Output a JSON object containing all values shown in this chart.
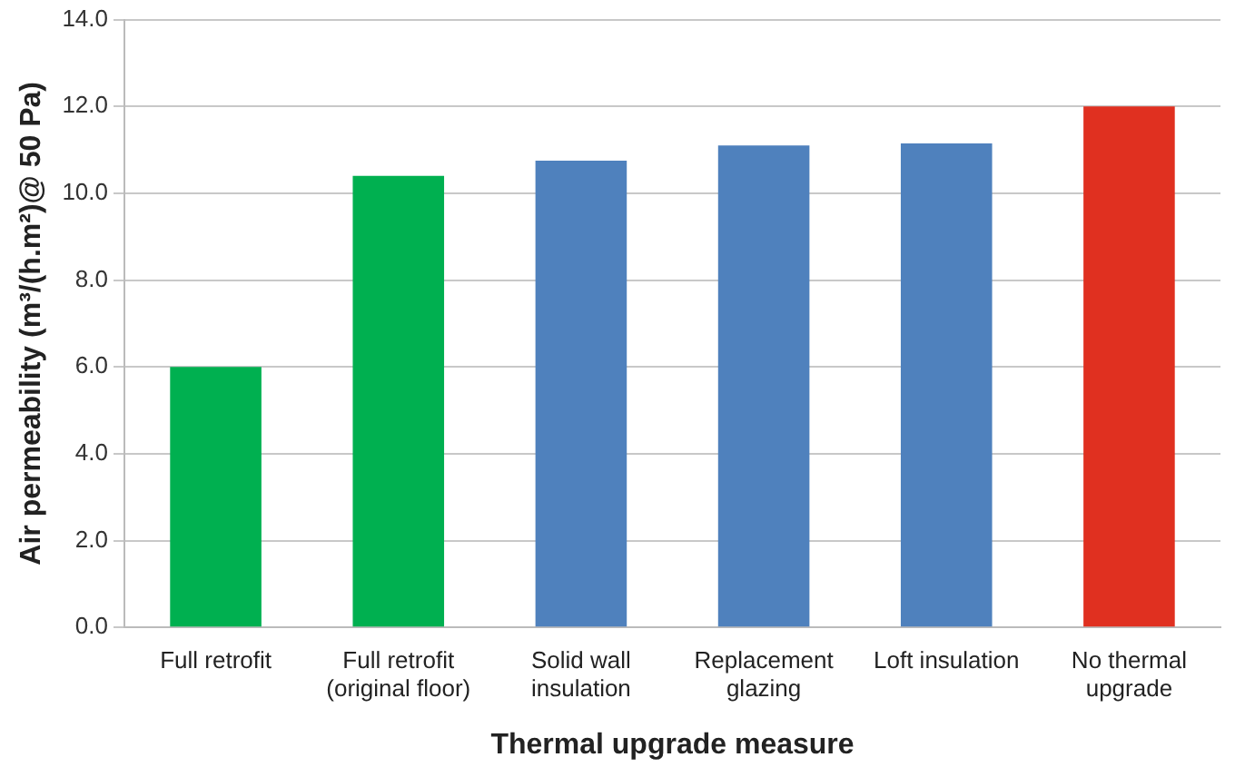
{
  "chart_data": {
    "type": "bar",
    "xlabel": "Thermal upgrade measure",
    "ylabel": "Air permeability (m³/(h.m²)@ 50 Pa)",
    "categories": [
      "Full retrofit",
      "Full retrofit (original floor)",
      "Solid wall insulation",
      "Replacement glazing",
      "Loft insulation",
      "No thermal upgrade"
    ],
    "values": [
      6.0,
      10.4,
      10.75,
      11.1,
      11.15,
      12.0
    ],
    "colors": [
      "#00b050",
      "#00b050",
      "#4f81bd",
      "#4f81bd",
      "#4f81bd",
      "#e03020"
    ],
    "ylim": [
      0,
      14
    ],
    "yticks": [
      {
        "value": 0,
        "label": "0.0"
      },
      {
        "value": 2,
        "label": "2.0"
      },
      {
        "value": 4,
        "label": "4.0"
      },
      {
        "value": 6,
        "label": "6.0"
      },
      {
        "value": 8,
        "label": "8.0"
      },
      {
        "value": 10,
        "label": "10.0"
      },
      {
        "value": 12,
        "label": "12.0"
      },
      {
        "value": 14,
        "label": "14.0"
      }
    ],
    "grid": "y",
    "legend": false
  }
}
